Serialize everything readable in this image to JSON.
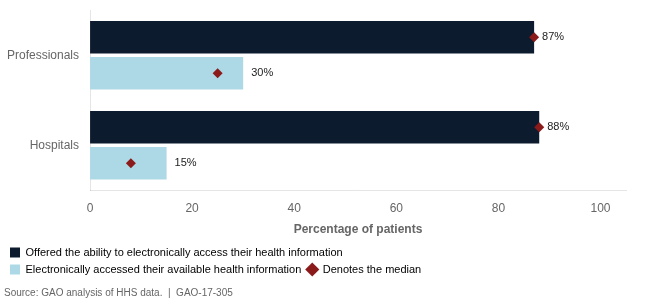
{
  "chart_data": {
    "type": "bar",
    "orientation": "horizontal",
    "categories": [
      "Professionals",
      "Hospitals"
    ],
    "series": [
      {
        "name": "Offered the ability to electronically access their health information",
        "color": "#0d1b2e",
        "values": [
          87,
          88
        ],
        "value_labels": [
          "87%",
          "88%"
        ],
        "medians": [
          87,
          88
        ]
      },
      {
        "name": "Electronically accessed their available health information",
        "color": "#add8e6",
        "values": [
          30,
          15
        ],
        "value_labels": [
          "30%",
          "15%"
        ],
        "medians": [
          25,
          8
        ]
      }
    ],
    "median": {
      "name": "Denotes the median",
      "color": "#8b1a1a",
      "marker": "diamond"
    },
    "xlabel": "Percentage of patients",
    "xlim": [
      0,
      105
    ],
    "xticks": [
      0,
      20,
      40,
      60,
      80,
      100
    ],
    "data_labels": true,
    "grid": false,
    "legend": "bottom",
    "source": "Source: GAO analysis of HHS data.  |  GAO-17-305"
  }
}
